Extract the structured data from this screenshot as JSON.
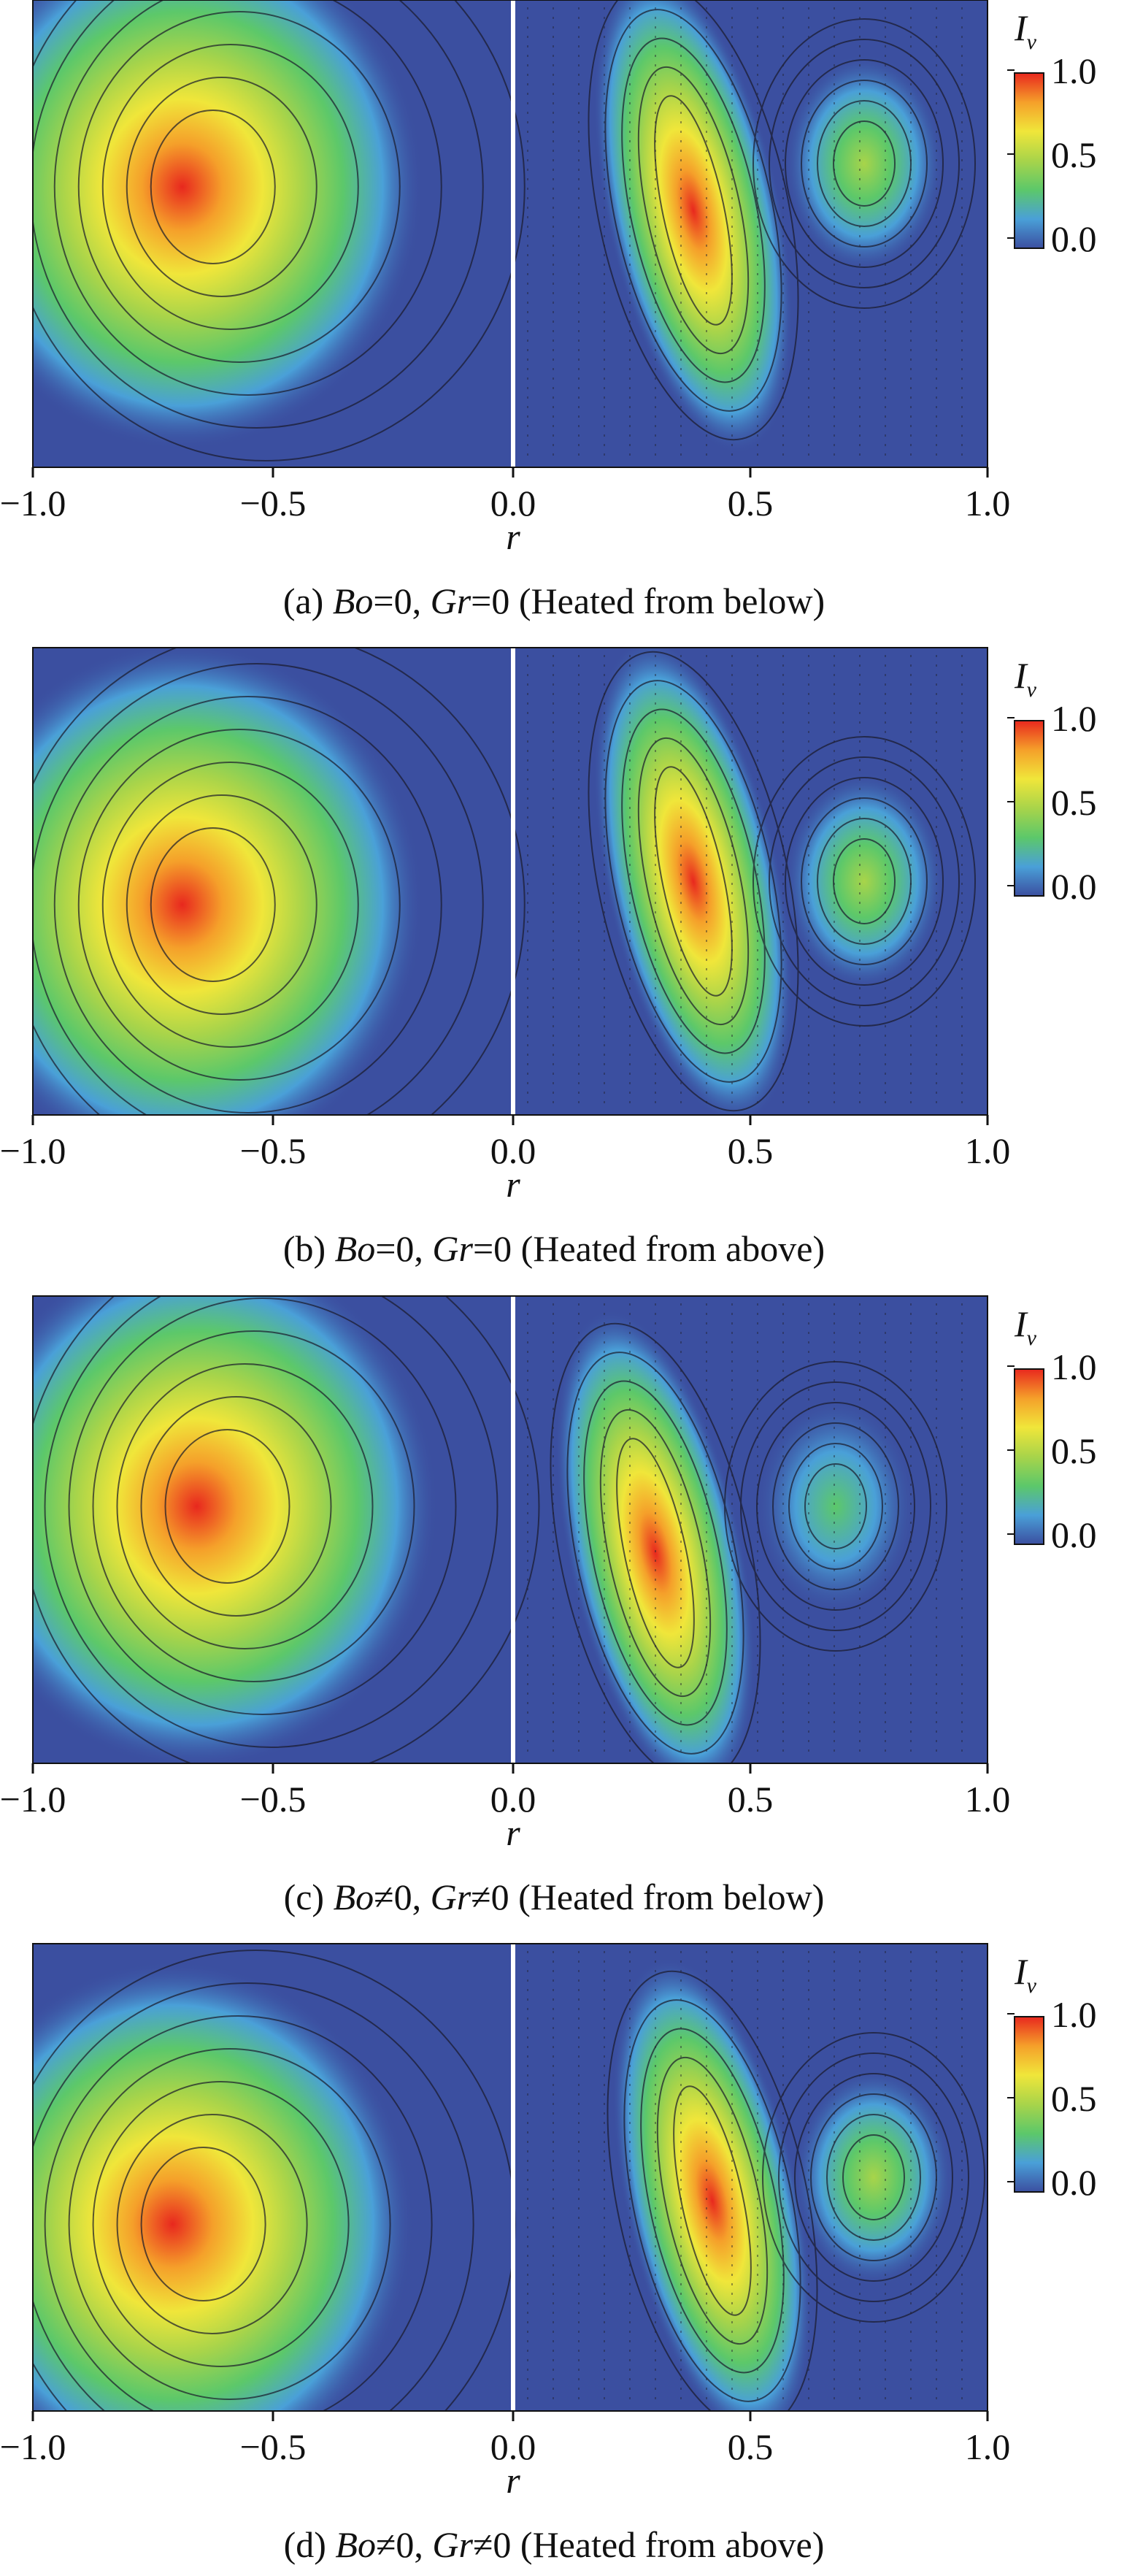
{
  "figure": {
    "colormap": [
      "#3b4fa0",
      "#4aa0d8",
      "#5cc86a",
      "#a8d44a",
      "#f0e63a",
      "#f5a02a",
      "#e8281e"
    ],
    "panels": [
      {
        "id": "a",
        "caption_prefix": "(a) ",
        "caption_bo": "Bo",
        "caption_bo_val": "=0, ",
        "caption_gr": "Gr",
        "caption_gr_val": "=0 (Heated from below)",
        "xlabel": "r",
        "xticks": [
          "−1.0",
          "−0.5",
          "0.0",
          "0.5",
          "1.0"
        ],
        "colorbar": {
          "label_main": "I",
          "label_sub": "v",
          "ticks": [
            "1.0",
            "0.5",
            "0.0"
          ]
        },
        "left_blob": {
          "r": -0.78,
          "z": 0.6
        },
        "right_crescent_peak": {
          "r": 0.38,
          "z": 0.55
        },
        "right_vortex": {
          "r": 0.74,
          "z": 0.65,
          "level": 0.55
        }
      },
      {
        "id": "b",
        "caption_prefix": "(b) ",
        "caption_bo": "Bo",
        "caption_bo_val": "=0, ",
        "caption_gr": "Gr",
        "caption_gr_val": "=0 (Heated from above)",
        "xlabel": "r",
        "xticks": [
          "−1.0",
          "−0.5",
          "0.0",
          "0.5",
          "1.0"
        ],
        "colorbar": {
          "label_main": "I",
          "label_sub": "v",
          "ticks": [
            "1.0",
            "0.5",
            "0.0"
          ]
        },
        "left_blob": {
          "r": -0.78,
          "z": 0.45
        },
        "right_crescent_peak": {
          "r": 0.38,
          "z": 0.5
        },
        "right_vortex": {
          "r": 0.74,
          "z": 0.5,
          "level": 0.55
        }
      },
      {
        "id": "c",
        "caption_prefix": "(c) ",
        "caption_bo": "Bo",
        "caption_bo_val": "≠0, ",
        "caption_gr": "Gr",
        "caption_gr_val": "≠0 (Heated from below)",
        "xlabel": "r",
        "xticks": [
          "−1.0",
          "−0.5",
          "0.0",
          "0.5",
          "1.0"
        ],
        "colorbar": {
          "label_main": "I",
          "label_sub": "v",
          "ticks": [
            "1.0",
            "0.5",
            "0.0"
          ]
        },
        "left_blob": {
          "r": -0.75,
          "z": 0.55
        },
        "right_crescent_peak": {
          "r": 0.3,
          "z": 0.45
        },
        "right_vortex": {
          "r": 0.68,
          "z": 0.55,
          "level": 0.4
        }
      },
      {
        "id": "d",
        "caption_prefix": "(d) ",
        "caption_bo": "Bo",
        "caption_bo_val": "≠0, ",
        "caption_gr": "Gr",
        "caption_gr_val": "≠0 (Heated from above)",
        "xlabel": "r",
        "xticks": [
          "−1.0",
          "−0.5",
          "0.0",
          "0.5",
          "1.0"
        ],
        "colorbar": {
          "label_main": "I",
          "label_sub": "v",
          "ticks": [
            "1.0",
            "0.5",
            "0.0"
          ]
        },
        "left_blob": {
          "r": -0.8,
          "z": 0.4
        },
        "right_crescent_peak": {
          "r": 0.42,
          "z": 0.45
        },
        "right_vortex": {
          "r": 0.76,
          "z": 0.5,
          "level": 0.55
        }
      }
    ]
  }
}
